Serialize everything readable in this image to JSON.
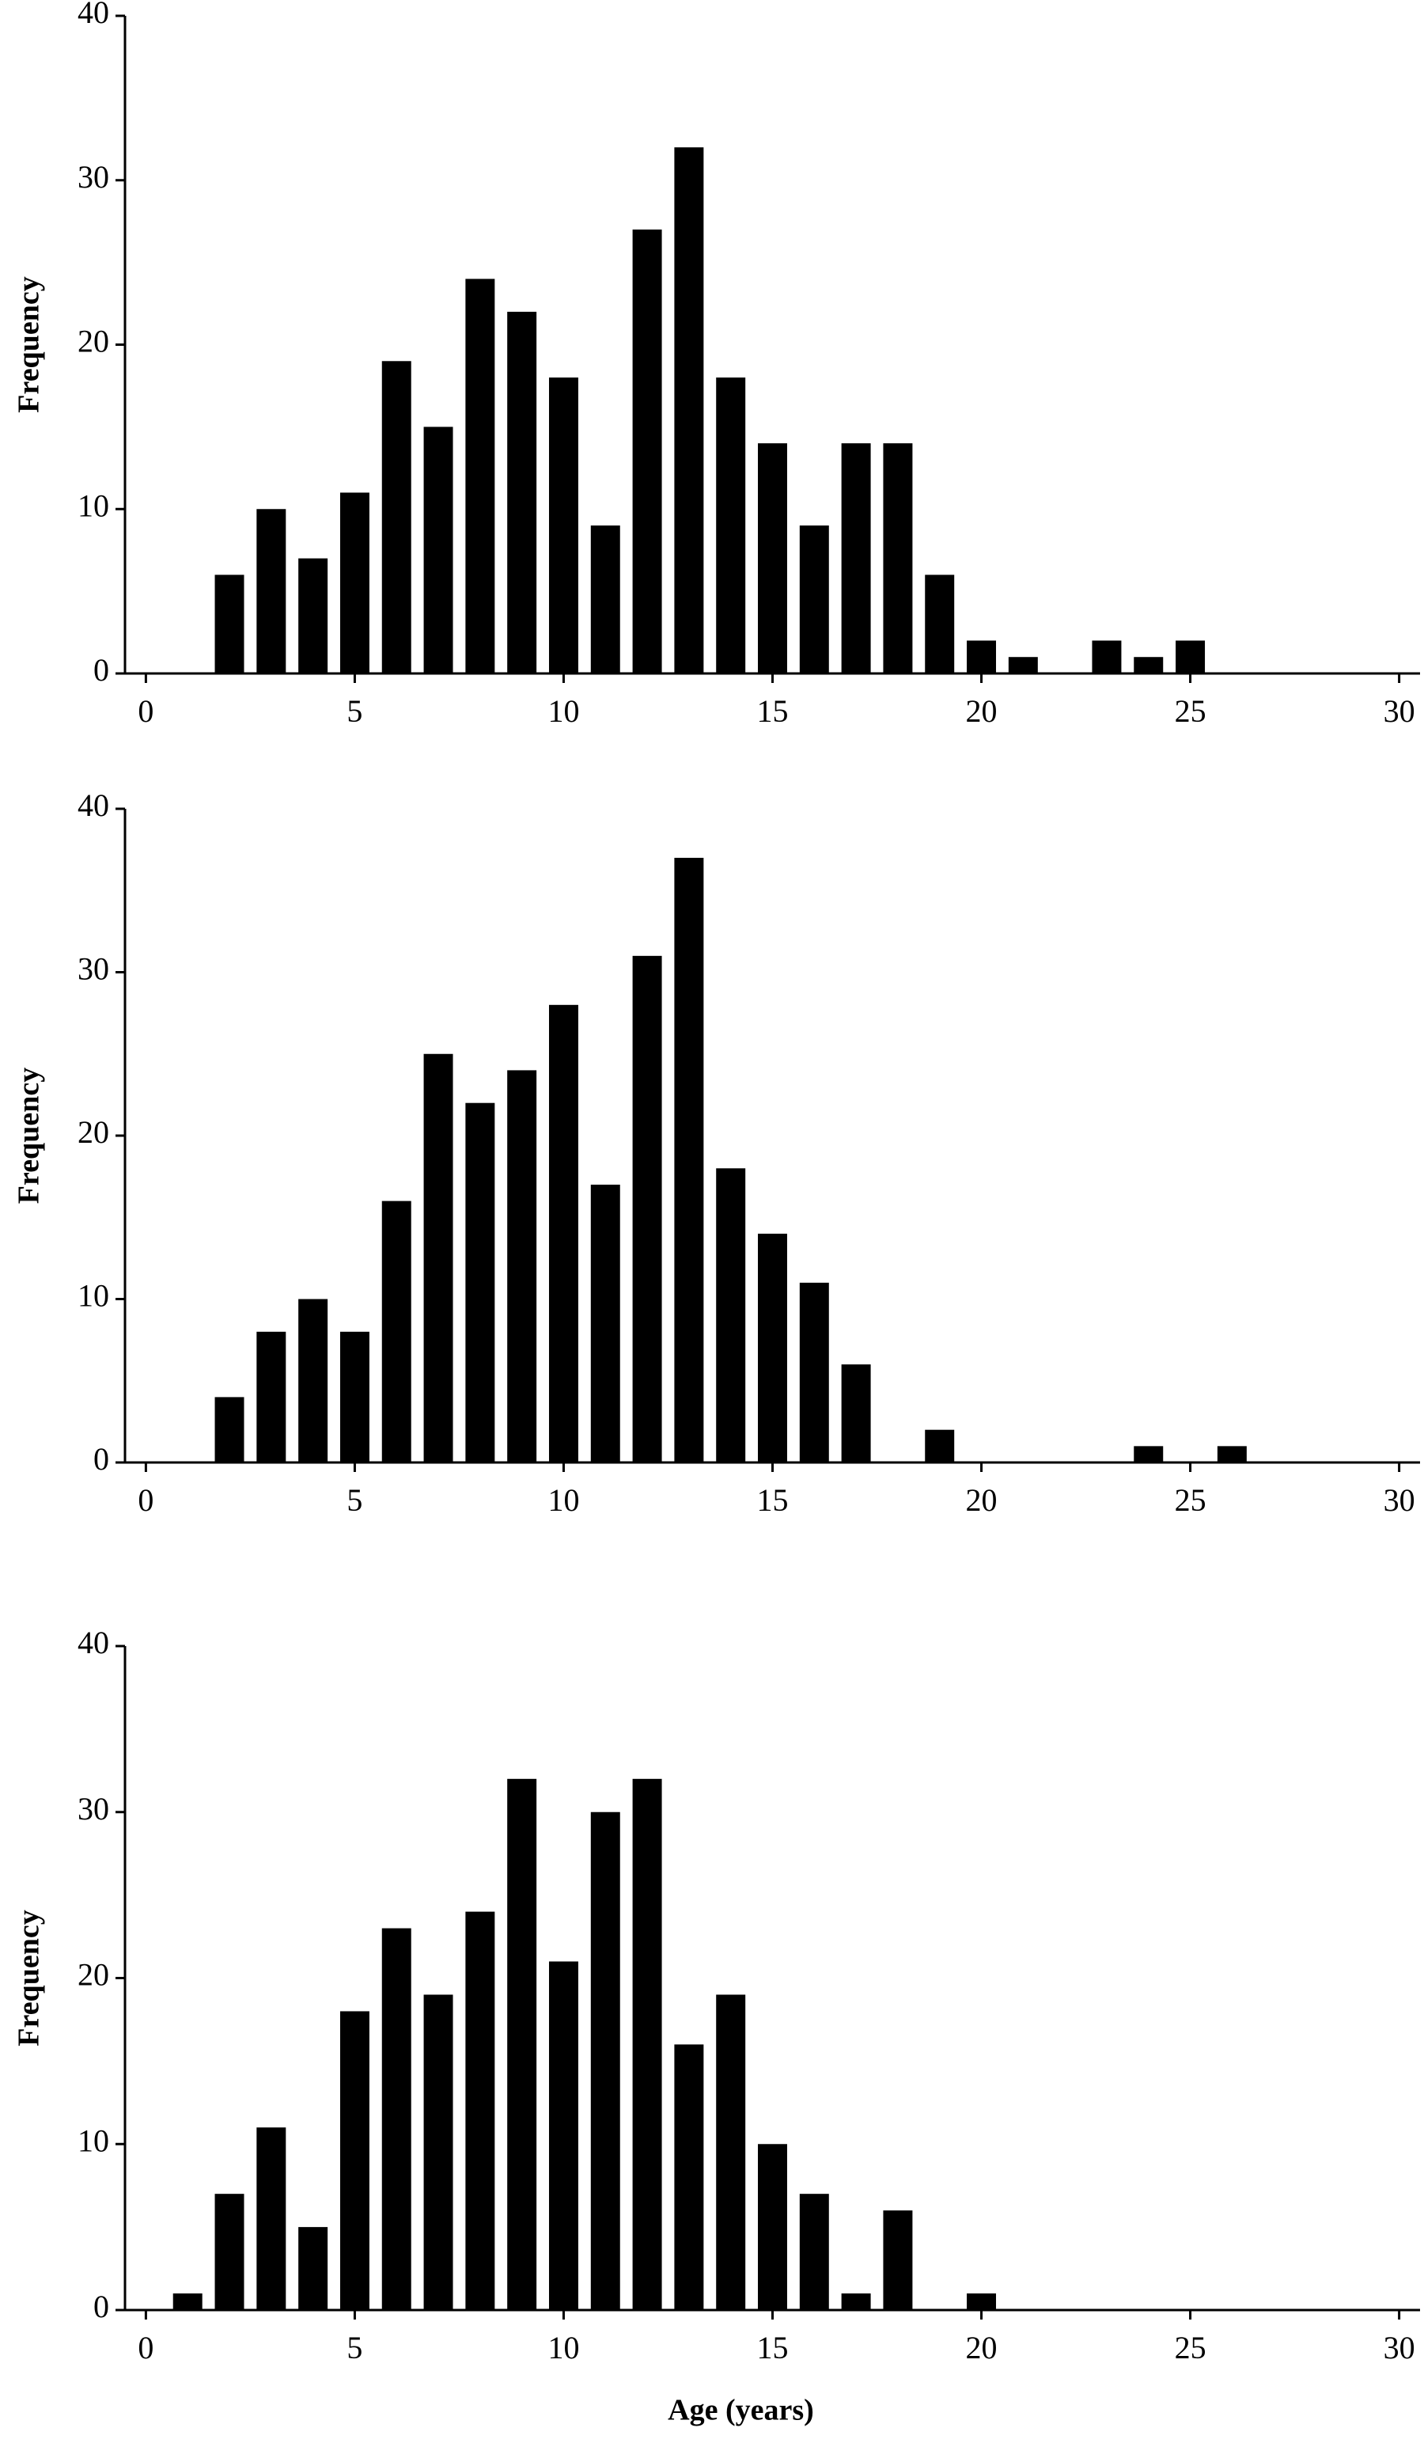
{
  "chart_data": [
    {
      "type": "bar",
      "y_label": "Frequency",
      "x": [
        2,
        3,
        4,
        5,
        6,
        7,
        8,
        9,
        10,
        11,
        12,
        13,
        14,
        15,
        16,
        17,
        18,
        19,
        20,
        21,
        23,
        24,
        25
      ],
      "values": [
        6,
        10,
        7,
        11,
        19,
        15,
        24,
        22,
        18,
        9,
        27,
        32,
        18,
        14,
        9,
        14,
        14,
        6,
        2,
        1,
        2,
        1,
        2
      ],
      "color": "#000000",
      "xlim": [
        -0.5,
        30.5
      ],
      "xticks": [
        0,
        5,
        10,
        15,
        20,
        25,
        30
      ],
      "ylim": [
        0,
        40
      ],
      "yticks": [
        0,
        10,
        20,
        30,
        40
      ]
    },
    {
      "type": "bar",
      "y_label": "Frequency",
      "x": [
        2,
        3,
        4,
        5,
        6,
        7,
        8,
        9,
        10,
        11,
        12,
        13,
        14,
        15,
        16,
        17,
        19,
        24,
        26
      ],
      "values": [
        4,
        8,
        10,
        8,
        16,
        25,
        22,
        24,
        28,
        17,
        31,
        37,
        18,
        14,
        11,
        6,
        2,
        1,
        1
      ],
      "color": "#000000",
      "xlim": [
        -0.5,
        30.5
      ],
      "xticks": [
        0,
        5,
        10,
        15,
        20,
        25,
        30
      ],
      "ylim": [
        0,
        40
      ],
      "yticks": [
        0,
        10,
        20,
        30,
        40
      ]
    },
    {
      "type": "bar",
      "y_label": "Frequency",
      "x_label": "Age (years)",
      "x": [
        1,
        2,
        3,
        4,
        5,
        6,
        7,
        8,
        9,
        10,
        11,
        12,
        13,
        14,
        15,
        16,
        17,
        18,
        20
      ],
      "values": [
        1,
        7,
        11,
        5,
        18,
        23,
        19,
        24,
        32,
        21,
        30,
        32,
        16,
        19,
        10,
        7,
        1,
        6,
        1
      ],
      "color": "#000000",
      "xlim": [
        -0.5,
        30.5
      ],
      "xticks": [
        0,
        5,
        10,
        15,
        20,
        25,
        30
      ],
      "ylim": [
        0,
        40
      ],
      "yticks": [
        0,
        10,
        20,
        30,
        40
      ]
    }
  ]
}
